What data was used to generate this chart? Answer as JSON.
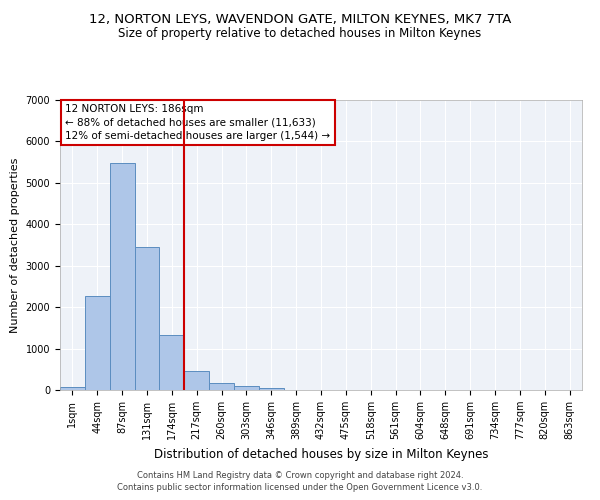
{
  "title_line1": "12, NORTON LEYS, WAVENDON GATE, MILTON KEYNES, MK7 7TA",
  "title_line2": "Size of property relative to detached houses in Milton Keynes",
  "xlabel": "Distribution of detached houses by size in Milton Keynes",
  "ylabel": "Number of detached properties",
  "categories": [
    "1sqm",
    "44sqm",
    "87sqm",
    "131sqm",
    "174sqm",
    "217sqm",
    "260sqm",
    "303sqm",
    "346sqm",
    "389sqm",
    "432sqm",
    "475sqm",
    "518sqm",
    "561sqm",
    "604sqm",
    "648sqm",
    "691sqm",
    "734sqm",
    "777sqm",
    "820sqm",
    "863sqm"
  ],
  "values": [
    80,
    2280,
    5480,
    3450,
    1320,
    460,
    160,
    90,
    50,
    0,
    0,
    0,
    0,
    0,
    0,
    0,
    0,
    0,
    0,
    0,
    0
  ],
  "bar_color": "#aec6e8",
  "bar_edgecolor": "#5b8dc0",
  "vline_x": 4.5,
  "vline_color": "#cc0000",
  "annotation_text": "12 NORTON LEYS: 186sqm\n← 88% of detached houses are smaller (11,633)\n12% of semi-detached houses are larger (1,544) →",
  "annotation_box_color": "#cc0000",
  "ylim": [
    0,
    7000
  ],
  "yticks": [
    0,
    1000,
    2000,
    3000,
    4000,
    5000,
    6000,
    7000
  ],
  "footer": "Contains HM Land Registry data © Crown copyright and database right 2024.\nContains public sector information licensed under the Open Government Licence v3.0.",
  "bg_color": "#eef2f8",
  "grid_color": "#ffffff",
  "title_fontsize": 9.5,
  "subtitle_fontsize": 8.5,
  "xlabel_fontsize": 8.5,
  "ylabel_fontsize": 8,
  "tick_fontsize": 7,
  "annotation_fontsize": 7.5,
  "footer_fontsize": 6
}
